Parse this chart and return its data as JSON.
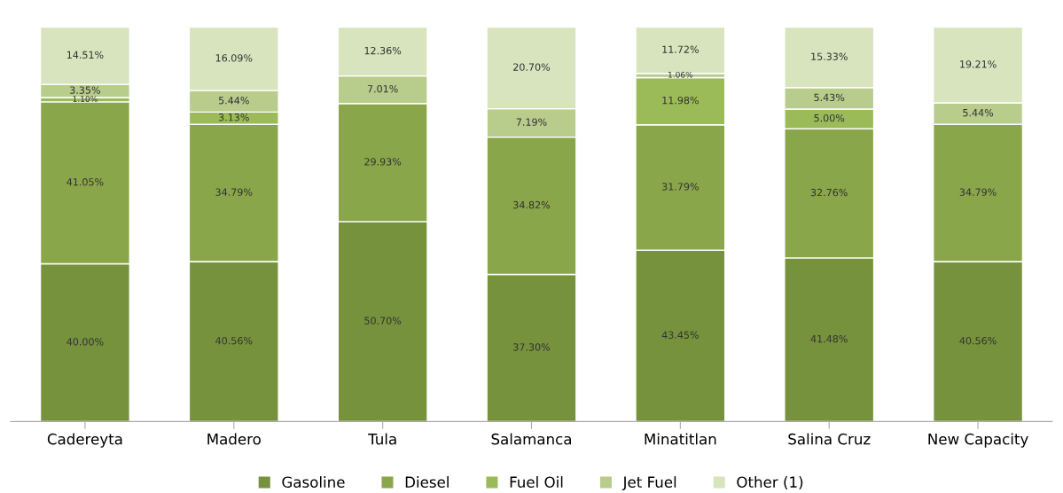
{
  "chart_data": {
    "type": "bar",
    "stacked": true,
    "categories": [
      "Cadereyta",
      "Madero",
      "Tula",
      "Salamanca",
      "Minatitlan",
      "Salina Cruz",
      "New Capacity"
    ],
    "series": [
      {
        "name": "Gasoline",
        "color": "#76923c",
        "values": [
          40.0,
          40.56,
          50.7,
          37.3,
          43.45,
          41.48,
          40.56
        ],
        "value_labels": [
          "40.00%",
          "40.56%",
          "50.70%",
          "37.30%",
          "43.45%",
          "41.48%",
          "40.56%"
        ]
      },
      {
        "name": "Diesel",
        "color": "#8aa64a",
        "values": [
          41.05,
          34.79,
          29.93,
          34.82,
          31.79,
          32.76,
          34.79
        ],
        "value_labels": [
          "41.05%",
          "34.79%",
          "29.93%",
          "34.82%",
          "31.79%",
          "32.76%",
          "34.79%"
        ]
      },
      {
        "name": "Fuel Oil",
        "color": "#9bbb59",
        "values": [
          1.1,
          3.13,
          null,
          null,
          11.98,
          5.0,
          null
        ],
        "value_labels": [
          "1.10%",
          "3.13%",
          null,
          null,
          "11.98%",
          "5.00%",
          null
        ]
      },
      {
        "name": "Jet Fuel",
        "color": "#b8cc8c",
        "values": [
          3.35,
          5.44,
          7.01,
          7.19,
          1.06,
          5.43,
          5.44
        ],
        "value_labels": [
          "3.35%",
          "5.44%",
          "7.01%",
          "7.19%",
          "1.06%",
          "5.43%",
          "5.44%"
        ]
      },
      {
        "name": "Other (1)",
        "color": "#d7e4bd",
        "values": [
          14.51,
          16.09,
          12.36,
          20.7,
          11.72,
          15.33,
          19.21
        ],
        "value_labels": [
          "14.51%",
          "16.09%",
          "12.36%",
          "20.70%",
          "11.72%",
          "15.33%",
          "19.21%"
        ]
      }
    ],
    "legend": "bottom",
    "grid": false
  }
}
